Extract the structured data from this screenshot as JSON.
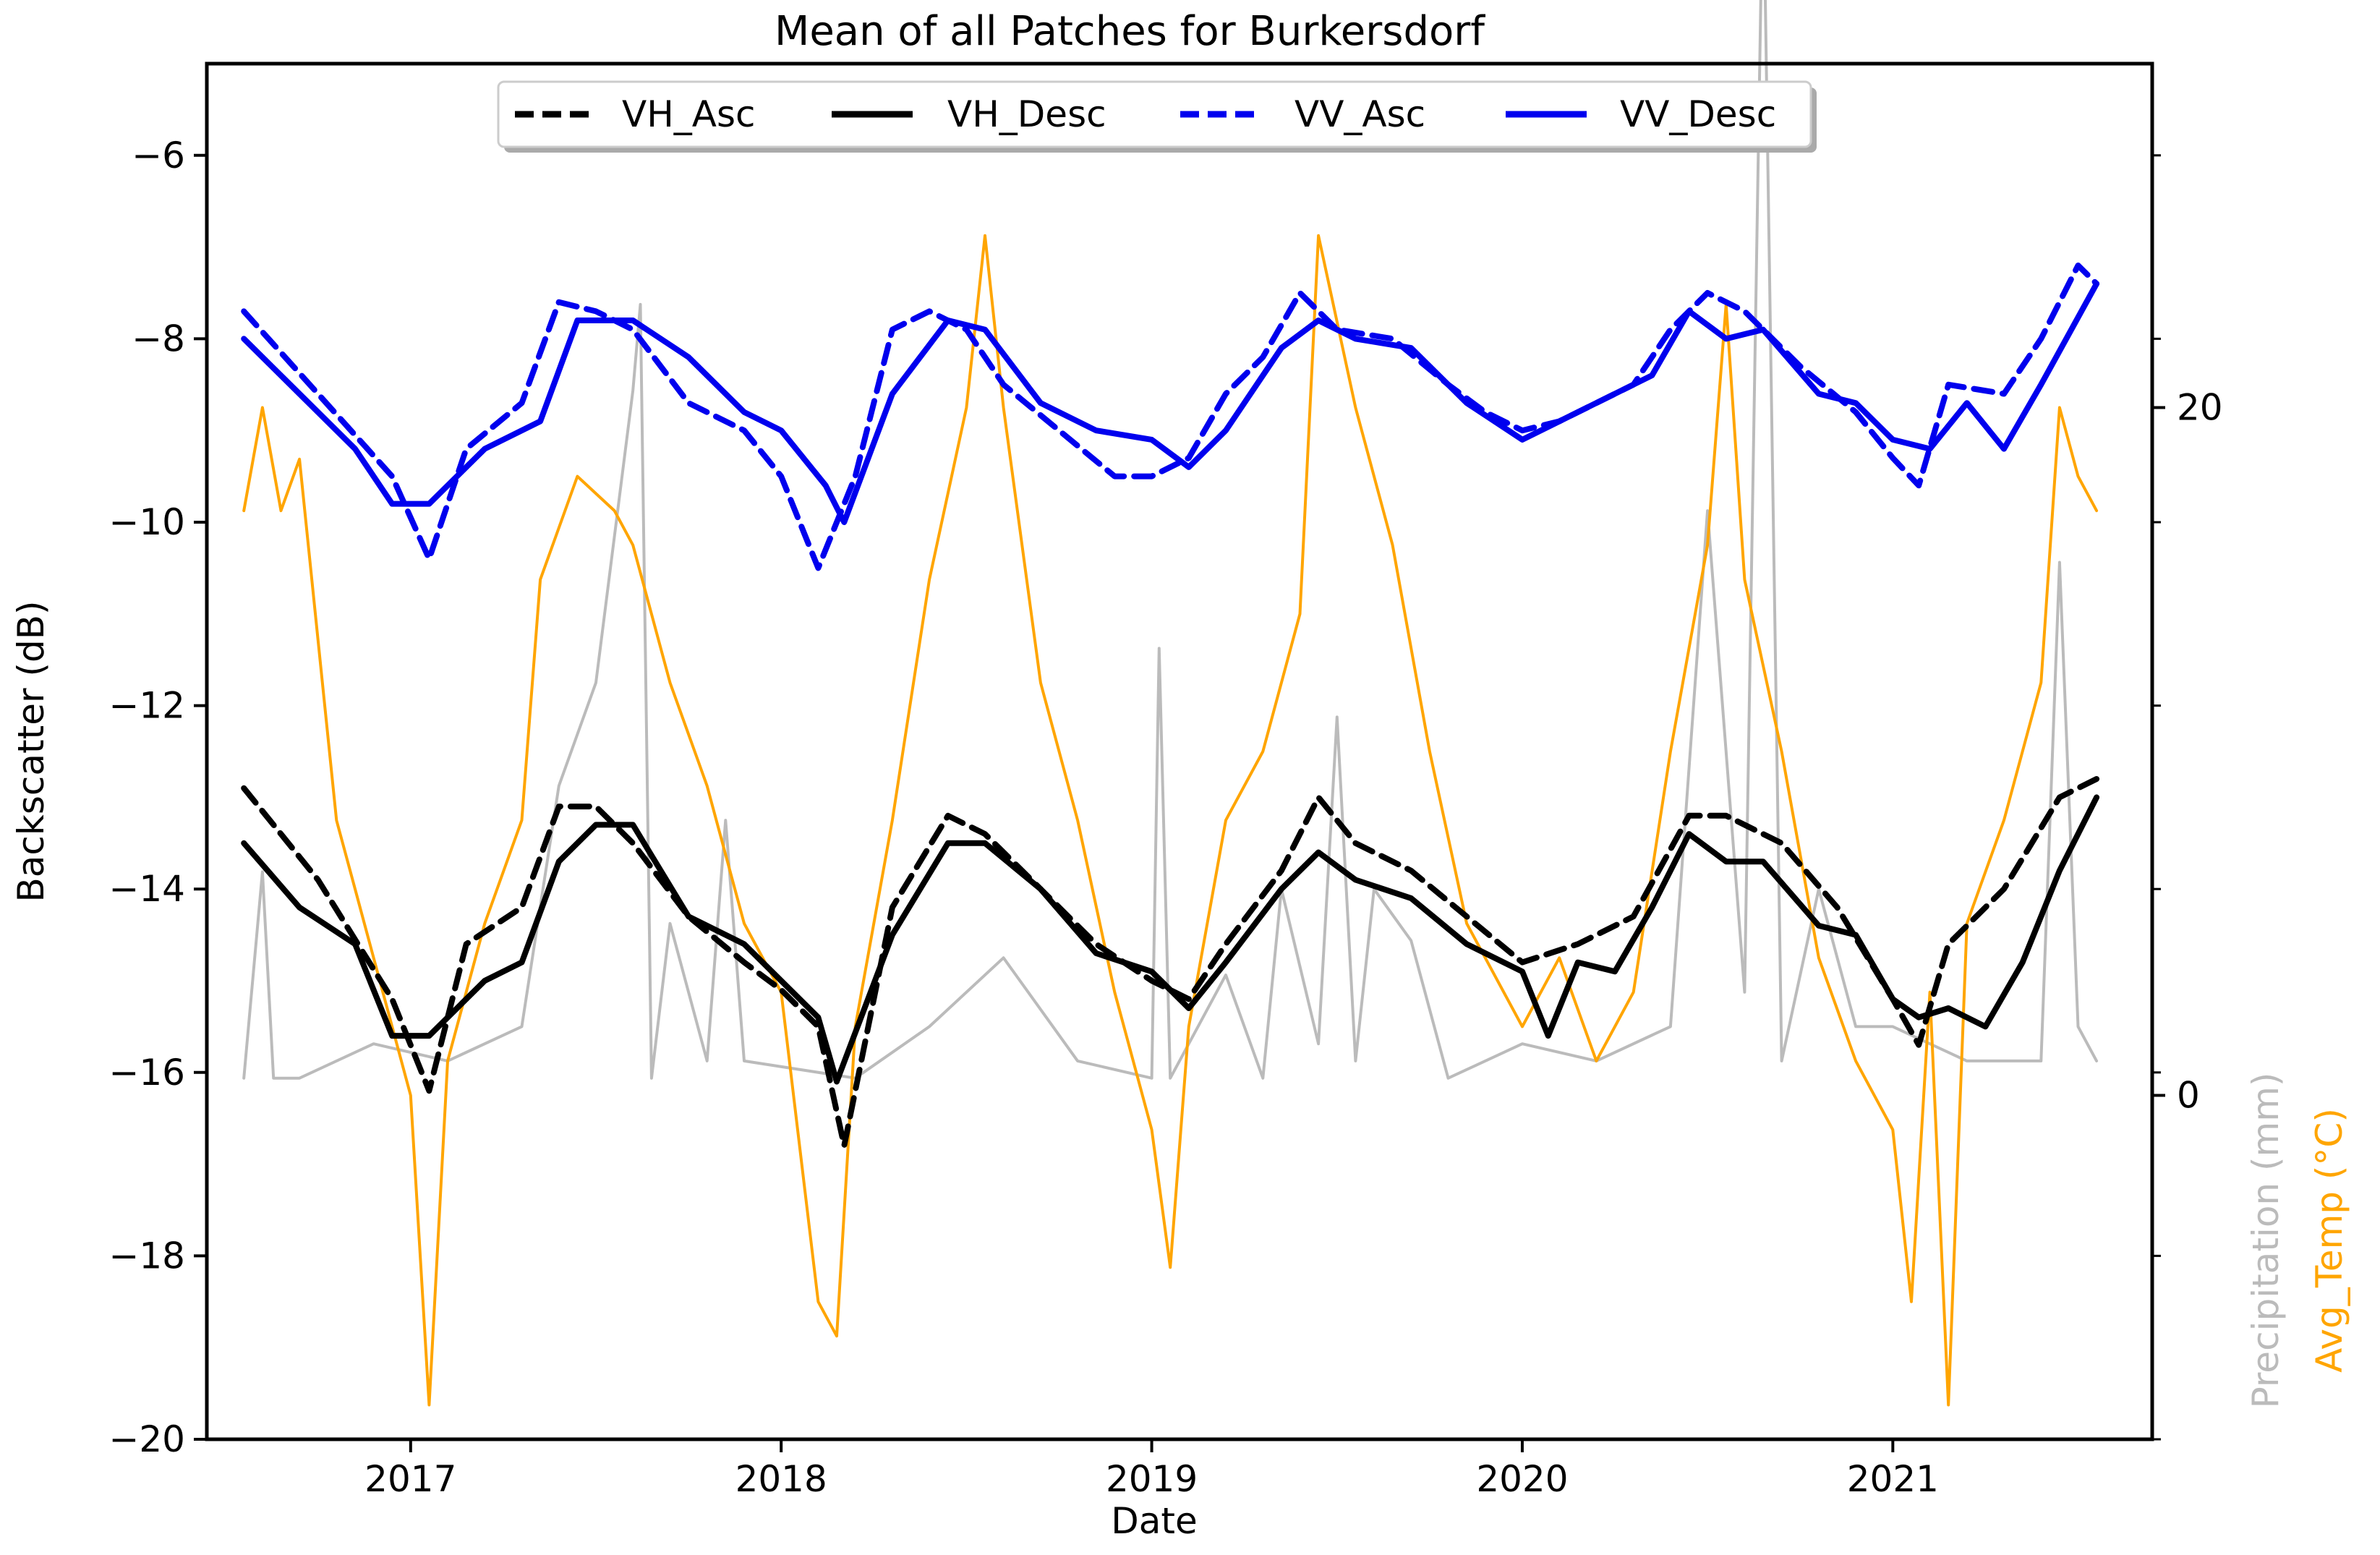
{
  "chart_data": {
    "type": "line",
    "title": "Mean of all Patches for Burkersdorf",
    "xlabel": "Date",
    "ylabel": "Backscatter (dB)",
    "ylabel_right_1": "Precipitation (mm)",
    "ylabel_right_2": "Avg_Temp (°C)",
    "x_ticks": [
      "2017",
      "2018",
      "2019",
      "2020",
      "2021"
    ],
    "y_ticks": [
      "−6",
      "−8",
      "−10",
      "−12",
      "−14",
      "−16",
      "−18",
      "−20"
    ],
    "right_ticks": [
      "20",
      "0"
    ],
    "xlim": [
      2016.45,
      2021.7
    ],
    "ylim": [
      -20,
      -5
    ],
    "right_ylim": [
      -10,
      30
    ],
    "legend_position": "top-center",
    "grid": false,
    "legend": [
      {
        "name": "VH_Asc",
        "style": "dashed",
        "color": "#000000"
      },
      {
        "name": "VH_Desc",
        "style": "solid",
        "color": "#000000"
      },
      {
        "name": "VV_Asc",
        "style": "dashed",
        "color": "#0000ee"
      },
      {
        "name": "VV_Desc",
        "style": "solid",
        "color": "#0000ee"
      }
    ],
    "series": [
      {
        "name": "VV_Asc",
        "axis": "left",
        "color": "#0000ee",
        "style": "dashed",
        "x": [
          2016.55,
          2016.75,
          2016.95,
          2017.05,
          2017.15,
          2017.3,
          2017.4,
          2017.5,
          2017.6,
          2017.75,
          2017.9,
          2018.0,
          2018.1,
          2018.2,
          2018.3,
          2018.4,
          2018.5,
          2018.6,
          2018.75,
          2018.9,
          2019.0,
          2019.1,
          2019.2,
          2019.3,
          2019.4,
          2019.5,
          2019.65,
          2019.8,
          2019.9,
          2020.0,
          2020.1,
          2020.2,
          2020.3,
          2020.4,
          2020.5,
          2020.6,
          2020.75,
          2020.9,
          2021.0,
          2021.07,
          2021.15,
          2021.3,
          2021.4,
          2021.5,
          2021.55
        ],
        "y": [
          -7.7,
          -8.6,
          -9.5,
          -10.4,
          -9.2,
          -8.7,
          -7.6,
          -7.7,
          -7.9,
          -8.7,
          -9.0,
          -9.5,
          -10.5,
          -9.5,
          -7.9,
          -7.7,
          -7.9,
          -8.5,
          -9.0,
          -9.5,
          -9.5,
          -9.3,
          -8.6,
          -8.2,
          -7.5,
          -7.9,
          -8.0,
          -8.5,
          -8.8,
          -9.0,
          -8.9,
          -8.7,
          -8.5,
          -7.9,
          -7.5,
          -7.7,
          -8.3,
          -8.8,
          -9.3,
          -9.6,
          -8.5,
          -8.6,
          -8.0,
          -7.2,
          -7.4
        ]
      },
      {
        "name": "VV_Desc",
        "axis": "left",
        "color": "#0000ee",
        "style": "solid",
        "x": [
          2016.55,
          2016.7,
          2016.85,
          2016.95,
          2017.05,
          2017.2,
          2017.35,
          2017.45,
          2017.6,
          2017.75,
          2017.9,
          2018.0,
          2018.12,
          2018.17,
          2018.3,
          2018.45,
          2018.55,
          2018.7,
          2018.85,
          2019.0,
          2019.1,
          2019.2,
          2019.35,
          2019.45,
          2019.55,
          2019.7,
          2019.85,
          2020.0,
          2020.15,
          2020.35,
          2020.45,
          2020.55,
          2020.65,
          2020.8,
          2020.9,
          2021.0,
          2021.1,
          2021.2,
          2021.3,
          2021.4,
          2021.55
        ],
        "y": [
          -8.0,
          -8.6,
          -9.2,
          -9.8,
          -9.8,
          -9.2,
          -8.9,
          -7.8,
          -7.8,
          -8.2,
          -8.8,
          -9.0,
          -9.6,
          -10.0,
          -8.6,
          -7.8,
          -7.9,
          -8.7,
          -9.0,
          -9.1,
          -9.4,
          -9.0,
          -8.1,
          -7.8,
          -8.0,
          -8.1,
          -8.7,
          -9.1,
          -8.8,
          -8.4,
          -7.7,
          -8.0,
          -7.9,
          -8.6,
          -8.7,
          -9.1,
          -9.2,
          -8.7,
          -9.2,
          -8.5,
          -7.4
        ]
      },
      {
        "name": "VH_Asc",
        "axis": "left",
        "color": "#000000",
        "style": "dashed",
        "x": [
          2016.55,
          2016.75,
          2016.95,
          2017.05,
          2017.15,
          2017.3,
          2017.4,
          2017.5,
          2017.6,
          2017.75,
          2017.9,
          2018.0,
          2018.1,
          2018.17,
          2018.3,
          2018.45,
          2018.55,
          2018.7,
          2018.85,
          2019.0,
          2019.1,
          2019.2,
          2019.35,
          2019.45,
          2019.55,
          2019.7,
          2019.85,
          2020.0,
          2020.15,
          2020.3,
          2020.45,
          2020.55,
          2020.7,
          2020.85,
          2021.0,
          2021.07,
          2021.15,
          2021.3,
          2021.45,
          2021.55
        ],
        "y": [
          -12.9,
          -13.9,
          -15.2,
          -16.2,
          -14.6,
          -14.2,
          -13.1,
          -13.1,
          -13.5,
          -14.3,
          -14.8,
          -15.1,
          -15.5,
          -16.8,
          -14.2,
          -13.2,
          -13.4,
          -14.0,
          -14.6,
          -15.0,
          -15.2,
          -14.6,
          -13.8,
          -13.0,
          -13.5,
          -13.8,
          -14.3,
          -14.8,
          -14.6,
          -14.3,
          -13.2,
          -13.2,
          -13.5,
          -14.2,
          -15.2,
          -15.7,
          -14.6,
          -14.0,
          -13.0,
          -12.8
        ]
      },
      {
        "name": "VH_Desc",
        "axis": "left",
        "color": "#000000",
        "style": "solid",
        "x": [
          2016.55,
          2016.7,
          2016.85,
          2016.95,
          2017.05,
          2017.2,
          2017.3,
          2017.4,
          2017.5,
          2017.6,
          2017.75,
          2017.9,
          2018.0,
          2018.1,
          2018.15,
          2018.3,
          2018.45,
          2018.55,
          2018.7,
          2018.85,
          2019.0,
          2019.1,
          2019.2,
          2019.35,
          2019.45,
          2019.55,
          2019.7,
          2019.85,
          2020.0,
          2020.07,
          2020.15,
          2020.25,
          2020.35,
          2020.45,
          2020.55,
          2020.65,
          2020.8,
          2020.9,
          2021.0,
          2021.07,
          2021.15,
          2021.25,
          2021.35,
          2021.45,
          2021.55
        ],
        "y": [
          -13.5,
          -14.2,
          -14.6,
          -15.6,
          -15.6,
          -15.0,
          -14.8,
          -13.7,
          -13.3,
          -13.3,
          -14.3,
          -14.6,
          -15.0,
          -15.4,
          -16.1,
          -14.5,
          -13.5,
          -13.5,
          -14.0,
          -14.7,
          -14.9,
          -15.3,
          -14.8,
          -14.0,
          -13.6,
          -13.9,
          -14.1,
          -14.6,
          -14.9,
          -15.6,
          -14.8,
          -14.9,
          -14.2,
          -13.4,
          -13.7,
          -13.7,
          -14.4,
          -14.5,
          -15.2,
          -15.4,
          -15.3,
          -15.5,
          -14.8,
          -13.8,
          -13.0
        ]
      },
      {
        "name": "Precipitation (mm)",
        "axis": "right",
        "color": "#bbbbbb",
        "style": "solid",
        "x": [
          2016.55,
          2016.6,
          2016.63,
          2016.7,
          2016.9,
          2017.1,
          2017.3,
          2017.4,
          2017.5,
          2017.6,
          2017.62,
          2017.65,
          2017.7,
          2017.8,
          2017.85,
          2017.9,
          2018.2,
          2018.4,
          2018.6,
          2018.8,
          2019.0,
          2019.02,
          2019.05,
          2019.2,
          2019.3,
          2019.35,
          2019.45,
          2019.5,
          2019.55,
          2019.6,
          2019.7,
          2019.8,
          2020.0,
          2020.2,
          2020.4,
          2020.5,
          2020.6,
          2020.65,
          2020.7,
          2020.8,
          2020.9,
          2021.0,
          2021.2,
          2021.4,
          2021.45,
          2021.5,
          2021.55
        ],
        "y": [
          0.5,
          6.5,
          0.5,
          0.5,
          1.5,
          1.0,
          2.0,
          9.0,
          12.0,
          20.5,
          23.0,
          0.5,
          5.0,
          1.0,
          8.0,
          1.0,
          0.5,
          2.0,
          4.0,
          1.0,
          0.5,
          13.0,
          0.5,
          3.5,
          0.5,
          6.0,
          1.5,
          11.0,
          1.0,
          6.0,
          4.5,
          0.5,
          1.5,
          1.0,
          2.0,
          17.0,
          3.0,
          36.0,
          1.0,
          6.0,
          2.0,
          2.0,
          1.0,
          1.0,
          15.5,
          2.0,
          1.0
        ]
      },
      {
        "name": "Avg_Temp (°C)",
        "axis": "right",
        "color": "#ffa500",
        "style": "solid",
        "x": [
          2016.55,
          2016.6,
          2016.65,
          2016.7,
          2016.8,
          2016.85,
          2016.95,
          2017.0,
          2017.05,
          2017.1,
          2017.2,
          2017.3,
          2017.35,
          2017.45,
          2017.55,
          2017.6,
          2017.7,
          2017.8,
          2017.9,
          2018.0,
          2018.1,
          2018.15,
          2018.2,
          2018.3,
          2018.4,
          2018.5,
          2018.55,
          2018.6,
          2018.7,
          2018.8,
          2018.9,
          2019.0,
          2019.05,
          2019.1,
          2019.2,
          2019.3,
          2019.4,
          2019.45,
          2019.55,
          2019.65,
          2019.75,
          2019.85,
          2020.0,
          2020.1,
          2020.2,
          2020.3,
          2020.4,
          2020.5,
          2020.55,
          2020.6,
          2020.7,
          2020.8,
          2020.9,
          2021.0,
          2021.05,
          2021.1,
          2021.15,
          2021.2,
          2021.3,
          2021.4,
          2021.45,
          2021.5,
          2021.55
        ],
        "y": [
          17.0,
          20.0,
          17.0,
          18.5,
          8.0,
          6.0,
          2.0,
          0.0,
          -9.0,
          1.0,
          5.0,
          8.0,
          15.0,
          18.0,
          17.0,
          16.0,
          12.0,
          9.0,
          5.0,
          3.0,
          -6.0,
          -7.0,
          2.0,
          8.0,
          15.0,
          20.0,
          25.0,
          20.0,
          12.0,
          8.0,
          3.0,
          -1.0,
          -5.0,
          2.0,
          8.0,
          10.0,
          14.0,
          25.0,
          20.0,
          16.0,
          10.0,
          5.0,
          2.0,
          4.0,
          1.0,
          3.0,
          10.0,
          16.0,
          23.0,
          15.0,
          10.0,
          4.0,
          1.0,
          -1.0,
          -6.0,
          3.0,
          -9.0,
          5.0,
          8.0,
          12.0,
          20.0,
          18.0,
          17.0
        ]
      }
    ]
  }
}
